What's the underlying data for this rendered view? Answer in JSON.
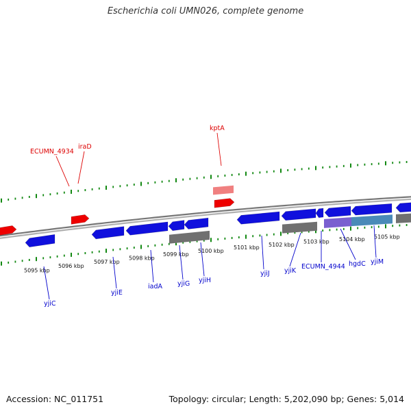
{
  "title": "Escherichia coli UMN026, complete genome",
  "footer": {
    "accession": "Accession: NC_011751",
    "summary": "Topology: circular; Length: 5,202,090 bp; Genes: 5,014"
  },
  "colors": {
    "forward_gene": "#ee0000",
    "forward_gene_light": "#f08080",
    "reverse_gene": "#1010dd",
    "backbone": "#8c8c8c",
    "ticks": "#118811",
    "feature_gray": "#707070",
    "feature_purple": "#7a5fd0",
    "feature_teal": "#4a8ab8"
  },
  "scale": {
    "unit": "kbp",
    "ticks": [
      {
        "value": 5095,
        "label": "5095 kbp"
      },
      {
        "value": 5096,
        "label": "5096 kbp"
      },
      {
        "value": 5097,
        "label": "5097 kbp"
      },
      {
        "value": 5098,
        "label": "5098 kbp"
      },
      {
        "value": 5099,
        "label": "5099 kbp"
      },
      {
        "value": 5100,
        "label": "5100 kbp"
      },
      {
        "value": 5101,
        "label": "5101 kbp"
      },
      {
        "value": 5102,
        "label": "5102 kbp"
      },
      {
        "value": 5103,
        "label": "5103 kbp"
      },
      {
        "value": 5104,
        "label": "5104 kbp"
      },
      {
        "value": 5105,
        "label": "5105 kbp"
      }
    ]
  },
  "forward_genes": [
    {
      "name": "ECUMN_4934",
      "labelled": true
    },
    {
      "name": "iraD",
      "labelled": true
    },
    {
      "name": "kptA",
      "labelled": true
    }
  ],
  "reverse_genes": [
    {
      "name": "yjiC"
    },
    {
      "name": "yjiE"
    },
    {
      "name": "iadA"
    },
    {
      "name": "yjiG"
    },
    {
      "name": "yjiH"
    },
    {
      "name": "yjiJ"
    },
    {
      "name": "yjiK"
    },
    {
      "name": "ECUMN_4944"
    },
    {
      "name": "hgdC"
    },
    {
      "name": "yjiM"
    }
  ]
}
